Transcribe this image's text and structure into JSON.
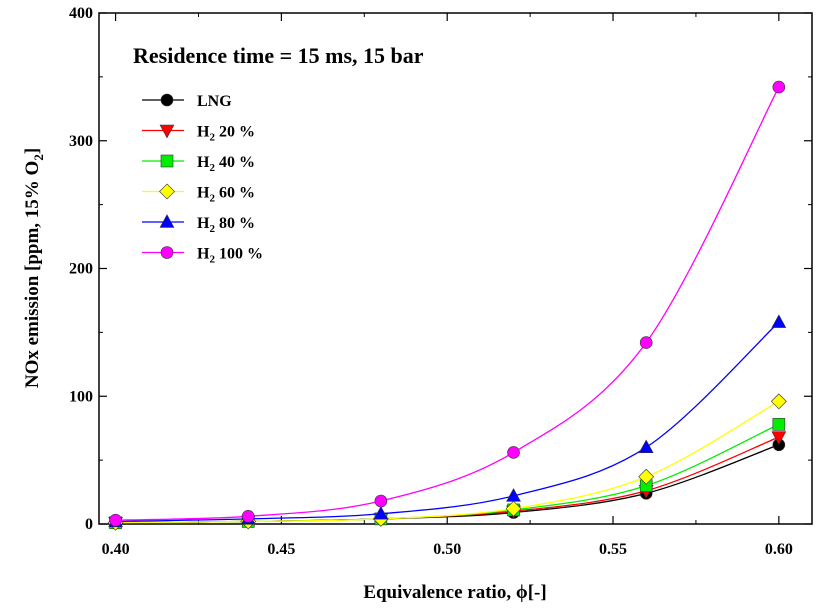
{
  "chart_data": {
    "type": "line",
    "annotation": "Residence time = 15 ms, 15 bar",
    "xlabel": "Equivalence ratio,  ϕ[-]",
    "ylabel_main": "NOx emission [ppm, 15% O",
    "ylabel_sub": "2",
    "ylabel_end": "]",
    "xlim": [
      0.395,
      0.61
    ],
    "ylim": [
      0,
      400
    ],
    "x_ticks": [
      {
        "value": 0.4,
        "label": "0.40"
      },
      {
        "value": 0.45,
        "label": "0.45"
      },
      {
        "value": 0.5,
        "label": "0.50"
      },
      {
        "value": 0.55,
        "label": "0.55"
      },
      {
        "value": 0.6,
        "label": "0.60"
      }
    ],
    "y_ticks": [
      {
        "value": 0,
        "label": "0"
      },
      {
        "value": 100,
        "label": "100"
      },
      {
        "value": 200,
        "label": "200"
      },
      {
        "value": 300,
        "label": "300"
      },
      {
        "value": 400,
        "label": "400"
      }
    ],
    "grid": false,
    "legend_position": "top-left",
    "x": [
      0.4,
      0.44,
      0.48,
      0.52,
      0.56,
      0.6
    ],
    "series": [
      {
        "name": "LNG",
        "prefix": "",
        "sub": "",
        "suffix": "LNG",
        "color": "#000000",
        "marker": "circle",
        "values": [
          1,
          2,
          4,
          9,
          24,
          62
        ]
      },
      {
        "name": "H2 20 %",
        "prefix": "H",
        "sub": "2",
        "suffix": " 20 %",
        "color": "#ff0000",
        "marker": "triangle-down",
        "values": [
          1,
          2,
          4,
          10,
          26,
          68
        ]
      },
      {
        "name": "H2 40 %",
        "prefix": "H",
        "sub": "2",
        "suffix": " 40 %",
        "color": "#00ee00",
        "marker": "square",
        "values": [
          1,
          2,
          4,
          11,
          30,
          78
        ]
      },
      {
        "name": "H2 60 %",
        "prefix": "H",
        "sub": "2",
        "suffix": " 60 %",
        "color": "#ffff00",
        "marker": "diamond",
        "values": [
          1,
          2,
          4,
          12,
          37,
          96
        ]
      },
      {
        "name": "H2 80 %",
        "prefix": "H",
        "sub": "2",
        "suffix": " 80 %",
        "color": "#0000ff",
        "marker": "triangle-up",
        "values": [
          2,
          4,
          8,
          22,
          60,
          158
        ]
      },
      {
        "name": "H2 100 %",
        "prefix": "H",
        "sub": "2",
        "suffix": " 100 %",
        "color": "#ff00ff",
        "marker": "circle",
        "values": [
          3,
          6,
          18,
          56,
          142,
          342
        ]
      }
    ]
  }
}
